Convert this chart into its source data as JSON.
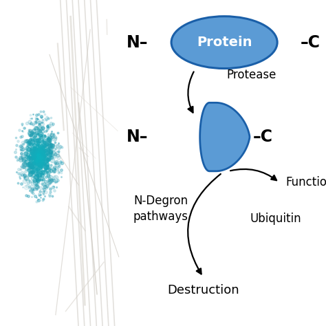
{
  "bg_color": "#ffffff",
  "ellipse_outline_color": "#1a5fa8",
  "ellipse_fill_color": "#5b9bd5",
  "ellipse_text": "Protein",
  "ellipse_text_color": "#ffffff",
  "arrow_color": "#000000",
  "text_color": "#000000",
  "teardrop_fill_color": "#5b9bd5",
  "teardrop_outline_color": "#1a5fa8",
  "N_top": "N",
  "C_top": "C",
  "protease": "Protease",
  "N_mid": "N",
  "C_mid": "C",
  "function": "Function",
  "ndegron": "N-Degron\npathways",
  "ubiquitin": "Ubiquitin",
  "destruction": "Destruction"
}
